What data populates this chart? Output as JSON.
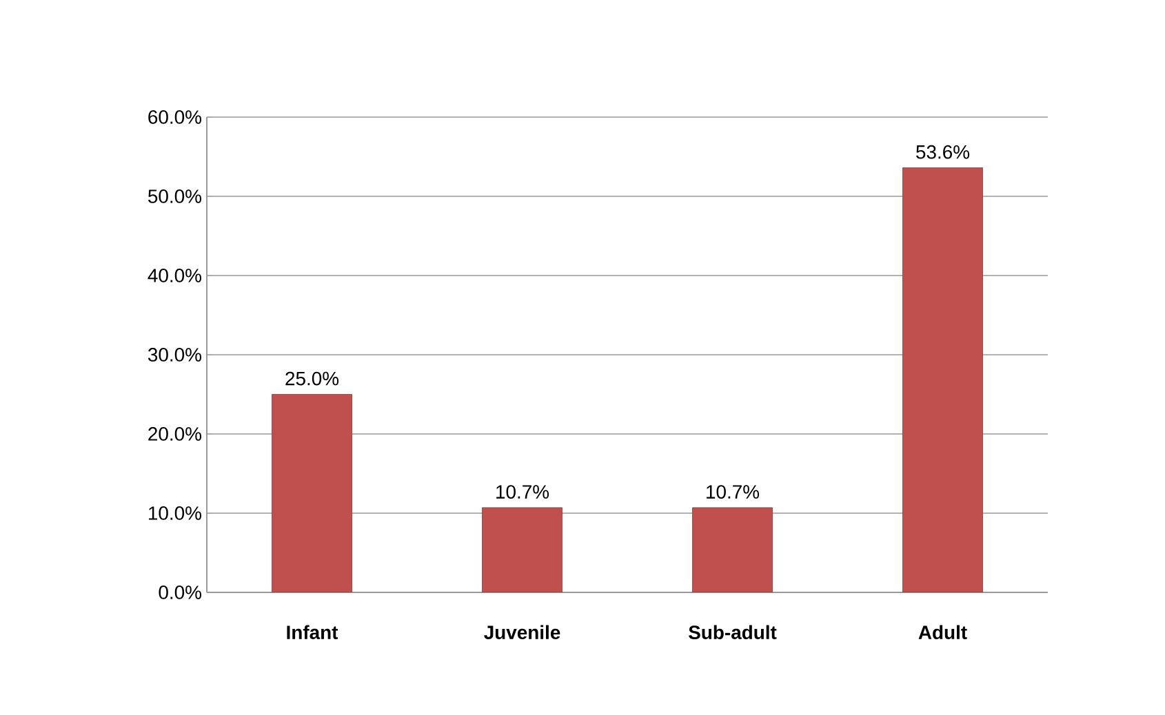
{
  "chart_data": {
    "type": "bar",
    "categories": [
      "Infant",
      "Juvenile",
      "Sub-adult",
      "Adult"
    ],
    "values": [
      25.0,
      10.7,
      10.7,
      53.6
    ],
    "value_labels": [
      "25.0%",
      "10.7%",
      "10.7%",
      "53.6%"
    ],
    "color": "#c0504d",
    "ylim": [
      0,
      60
    ],
    "yticks": [
      {
        "value": 0,
        "label": "0.0%"
      },
      {
        "value": 10,
        "label": "10.0%"
      },
      {
        "value": 20,
        "label": "20.0%"
      },
      {
        "value": 30,
        "label": "30.0%"
      },
      {
        "value": 40,
        "label": "40.0%"
      },
      {
        "value": 50,
        "label": "50.0%"
      },
      {
        "value": 60,
        "label": "60.0%"
      }
    ],
    "grid": "y"
  }
}
